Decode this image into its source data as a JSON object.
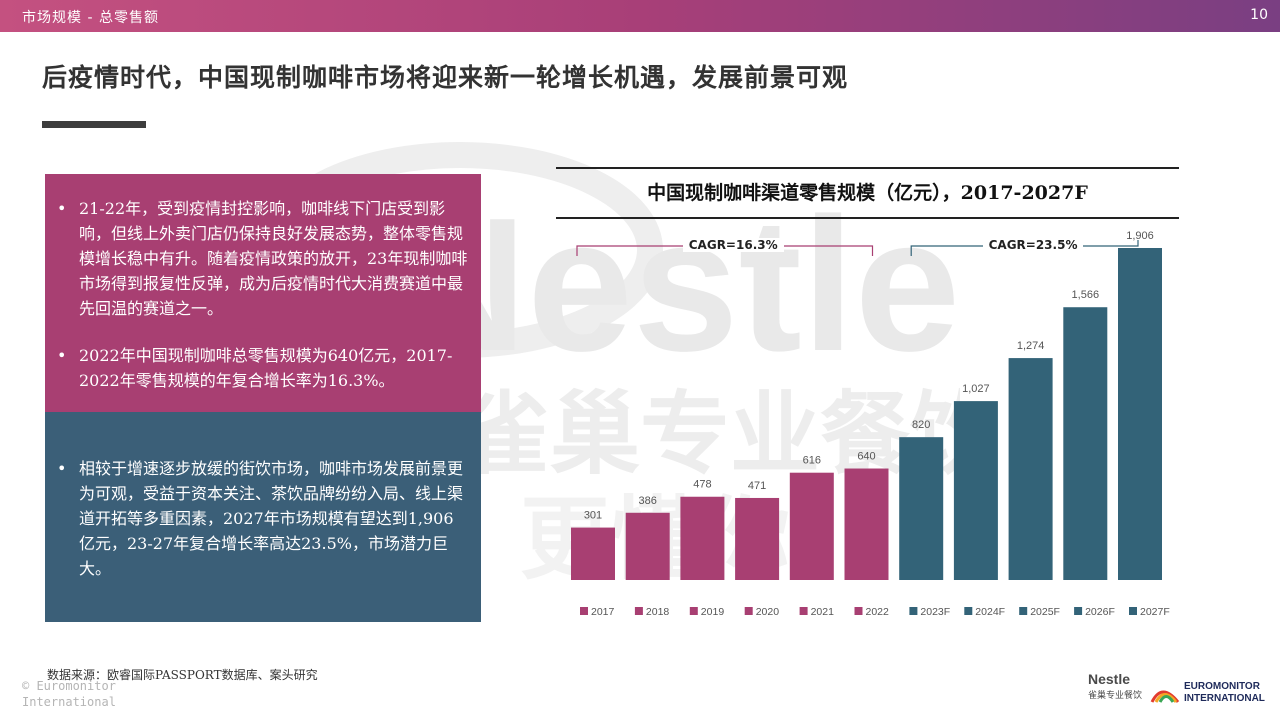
{
  "header": {
    "section": "市场规模 - 总零售额",
    "page_number": "10"
  },
  "headline": "后疫情时代，中国现制咖啡市场将迎来新一轮增长机遇，发展前景可观",
  "watermark": {
    "brand": "Nestle",
    "subtitle": "雀巢专业餐饮",
    "subtitle_line2": "更懂你"
  },
  "left_panel": {
    "top_bullets": [
      "21-22年，受到疫情封控影响，咖啡线下门店受到影响，但线上外卖门店仍保持良好发展态势，整体零售规模增长稳中有升。随着疫情政策的放开，23年现制咖啡市场得到报复性反弹，成为后疫情时代大消费赛道中最先回温的赛道之一。",
      "2022年中国现制咖啡总零售规模为640亿元，2017-2022年零售规模的年复合增长率为16.3%。"
    ],
    "bottom_bullets": [
      "相较于增速逐步放缓的街饮市场，咖啡市场发展前景更为可观，受益于资本关注、茶饮品牌纷纷入局、线上渠道开拓等多重因素，2027年市场规模有望达到1,906亿元，23-27年复合增长率高达23.5%，市场潜力巨大。"
    ]
  },
  "chart_data": {
    "type": "bar",
    "title": "中国现制咖啡渠道零售规模（亿元），2017-2027F",
    "categories": [
      "2017",
      "2018",
      "2019",
      "2020",
      "2021",
      "2022",
      "2023F",
      "2024F",
      "2025F",
      "2026F",
      "2027F"
    ],
    "values": [
      301,
      386,
      478,
      471,
      616,
      640,
      820,
      1027,
      1274,
      1566,
      1906
    ],
    "value_labels": [
      "301",
      "386",
      "478",
      "471",
      "616",
      "640",
      "820",
      "1,027",
      "1,274",
      "1,566",
      "1,906"
    ],
    "colors": [
      "#a83f72",
      "#a83f72",
      "#a83f72",
      "#a83f72",
      "#a83f72",
      "#a83f72",
      "#336378",
      "#336378",
      "#336378",
      "#336378",
      "#336378"
    ],
    "legend": [
      "2017",
      "2018",
      "2019",
      "2020",
      "2021",
      "2022",
      "2023F",
      "2024F",
      "2025F",
      "2026F",
      "2027F"
    ],
    "legend_position": "bottom",
    "annotations": [
      {
        "text": "CAGR=16.3%",
        "span": [
          "2017",
          "2022"
        ],
        "color": "#a83f72"
      },
      {
        "text": "CAGR=23.5%",
        "span": [
          "2023F",
          "2027F"
        ],
        "color": "#336378"
      }
    ],
    "xlabel": "",
    "ylabel": "",
    "grid": false
  },
  "source": "数据来源：欧睿国际PASSPORT数据库、案头研究",
  "copyright": {
    "line1": "© Euromonitor",
    "line2": "International"
  },
  "logos": {
    "nestle_text": "Nestle",
    "nestle_sub": "雀巢专业餐饮",
    "euromonitor_line1": "EUROMONITOR",
    "euromonitor_line2": "INTERNATIONAL"
  }
}
